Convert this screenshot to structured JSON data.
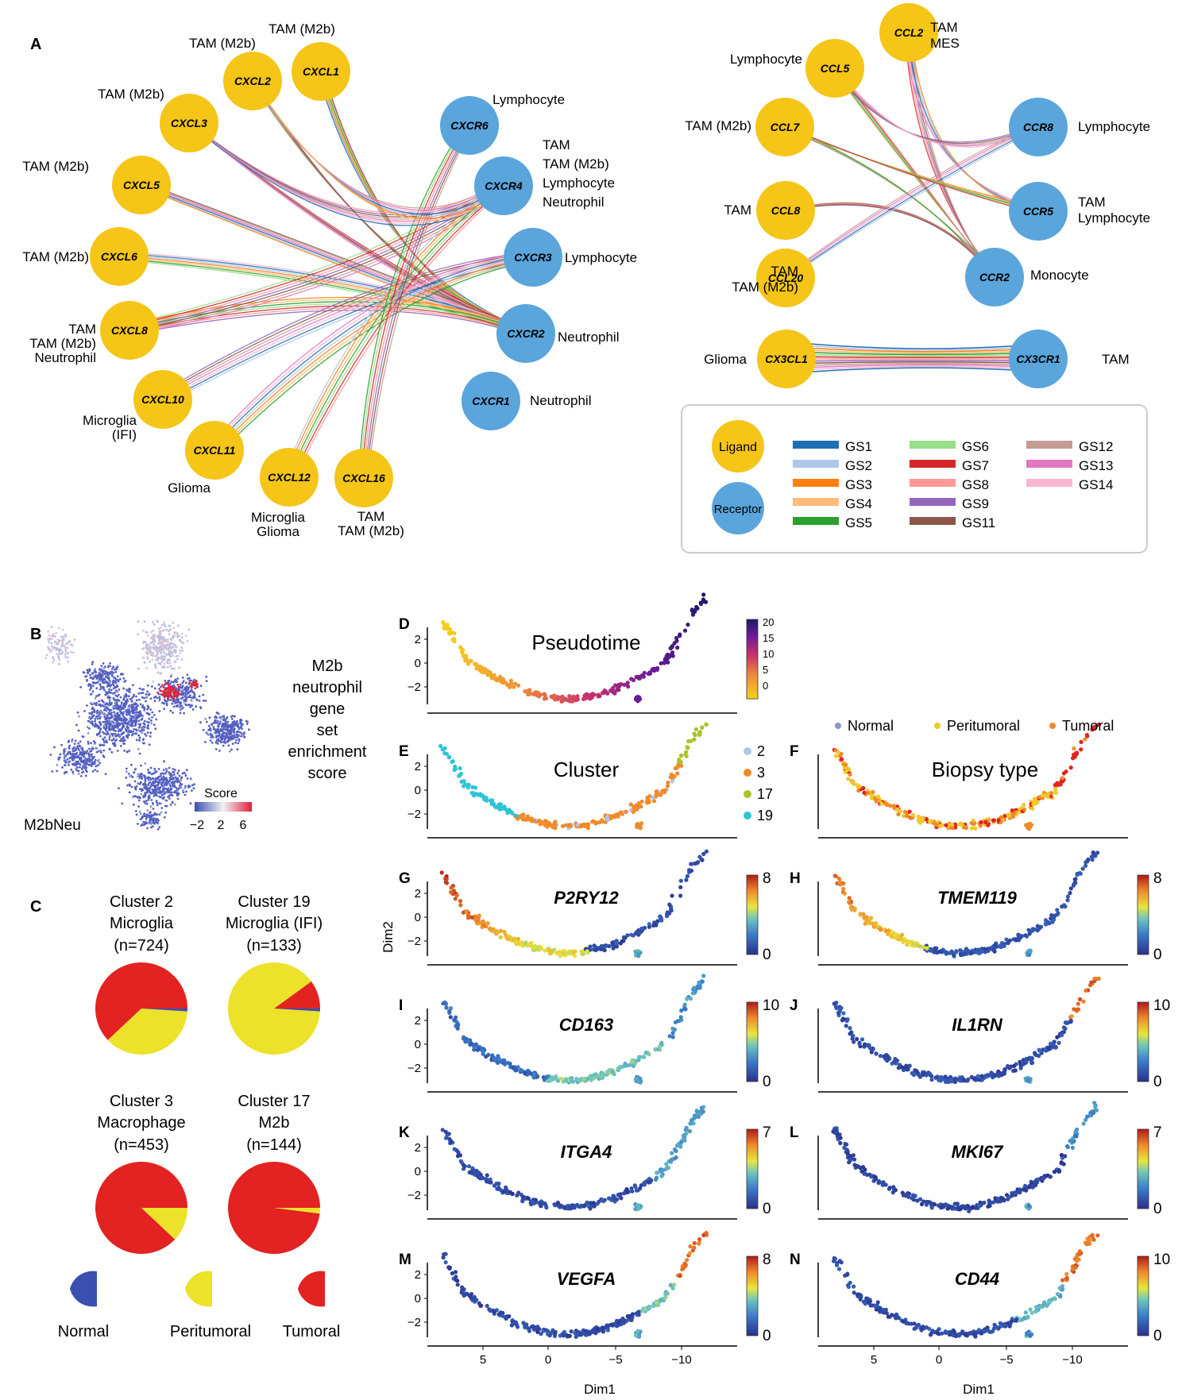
{
  "colors": {
    "ligand": "#f5c518",
    "receptor": "#5aa5dc",
    "normal": "#3a4fb0",
    "peritumoral": "#ece22a",
    "tumoral": "#e32222"
  },
  "panelA": {
    "label": "A",
    "ligands": [
      {
        "gene": "CXCL1",
        "cell": "TAM (M2b)"
      },
      {
        "gene": "CXCL2",
        "cell": "TAM (M2b)"
      },
      {
        "gene": "CXCL3",
        "cell": "TAM (M2b)"
      },
      {
        "gene": "CXCL5",
        "cell": "TAM (M2b)"
      },
      {
        "gene": "CXCL6",
        "cell": "TAM (M2b)"
      },
      {
        "gene": "CXCL8",
        "cell": "TAM\nTAM (M2b)\nNeutrophil"
      },
      {
        "gene": "CXCL10",
        "cell": "Microglia\n(IFI)"
      },
      {
        "gene": "CXCL11",
        "cell": "Glioma"
      },
      {
        "gene": "CXCL12",
        "cell": "Microglia\nGlioma"
      },
      {
        "gene": "CXCL16",
        "cell": "TAM\nTAM (M2b)"
      }
    ],
    "receptors": [
      {
        "gene": "CXCR6",
        "cell": "Lymphocyte"
      },
      {
        "gene": "CXCR4",
        "cell": "TAM\nTAM (M2b)\nLymphocyte\nNeutrophil"
      },
      {
        "gene": "CXCR3",
        "cell": "Lymphocyte"
      },
      {
        "gene": "CXCR2",
        "cell": "Neutrophil"
      },
      {
        "gene": "CXCR1",
        "cell": "Neutrophil"
      }
    ],
    "ccl_ligands": [
      {
        "gene": "CCL2",
        "cell": "TAM\nMES"
      },
      {
        "gene": "CCL5",
        "cell": "Lymphocyte"
      },
      {
        "gene": "CCL7",
        "cell": "TAM (M2b)"
      },
      {
        "gene": "CCL8",
        "cell": "TAM"
      },
      {
        "gene": "CCL20",
        "cell": "TAM\nTAM (M2b)"
      }
    ],
    "ccl_receptors": [
      {
        "gene": "CCR8",
        "cell": "Lymphocyte"
      },
      {
        "gene": "CCR5",
        "cell": "TAM\nLymphocyte"
      },
      {
        "gene": "CCR2",
        "cell": "Monocyte"
      }
    ],
    "cx3": {
      "ligand": {
        "gene": "CX3CL1",
        "cell": "Glioma"
      },
      "receptor": {
        "gene": "CX3CR1",
        "cell": "TAM"
      }
    },
    "legend": {
      "ligand_label": "Ligand",
      "receptor_label": "Receptor",
      "gene_sets": [
        {
          "name": "GS1",
          "color": "#1f6fb4"
        },
        {
          "name": "GS2",
          "color": "#aec7e8"
        },
        {
          "name": "GS3",
          "color": "#ff7f0e"
        },
        {
          "name": "GS4",
          "color": "#ffbb78"
        },
        {
          "name": "GS5",
          "color": "#2ca02c"
        },
        {
          "name": "GS6",
          "color": "#98df8a"
        },
        {
          "name": "GS7",
          "color": "#d62728"
        },
        {
          "name": "GS8",
          "color": "#ff9896"
        },
        {
          "name": "GS9",
          "color": "#9467bd"
        },
        {
          "name": "GS11",
          "color": "#8c564b"
        },
        {
          "name": "GS12",
          "color": "#c49c94"
        },
        {
          "name": "GS13",
          "color": "#e377c2"
        },
        {
          "name": "GS14",
          "color": "#f7b6d2"
        }
      ]
    }
  },
  "panelB": {
    "label": "B",
    "title": "M2b\nneutrophil\ngene\nset\nenrichment\nscore",
    "corner_label": "M2bNeu",
    "score_label": "Score",
    "ticks": [
      "−2",
      "2",
      "6"
    ]
  },
  "panelC": {
    "label": "C",
    "pies": [
      {
        "title": "Cluster 2\nMicroglia",
        "n": "(n=724)",
        "fractions": {
          "normal": 0.01,
          "peritumoral": 0.37,
          "tumoral": 0.62
        }
      },
      {
        "title": "Cluster 19\nMicroglia (IFI)",
        "n": "(n=133)",
        "fractions": {
          "normal": 0.01,
          "peritumoral": 0.89,
          "tumoral": 0.1
        }
      },
      {
        "title": "Cluster 3\nMacrophage",
        "n": "(n=453)",
        "fractions": {
          "normal": 0.0,
          "peritumoral": 0.12,
          "tumoral": 0.88
        }
      },
      {
        "title": "Cluster 17\nM2b",
        "n": "(n=144)",
        "fractions": {
          "normal": 0.0,
          "peritumoral": 0.02,
          "tumoral": 0.98
        }
      }
    ],
    "legend": [
      "Normal",
      "Peritumoral",
      "Tumoral"
    ]
  },
  "trajectory": {
    "ylabel": "Dim2",
    "xlabel": "Dim1",
    "yticks": [
      "2",
      "0",
      "−2"
    ],
    "xticks": [
      "5",
      "0",
      "−5",
      "−10"
    ],
    "panels": [
      {
        "label": "D",
        "title": "Pseudotime",
        "gene": false,
        "cbar": "pseudotime",
        "cbar_ticks": [
          "20",
          "15",
          "10",
          "5",
          "0"
        ]
      },
      {
        "label": "E",
        "title": "Cluster",
        "gene": false,
        "cbar": "cluster",
        "legend": [
          "2",
          "3",
          "17",
          "19"
        ]
      },
      {
        "label": "F",
        "title": "Biopsy type",
        "gene": false,
        "cbar": "biopsy",
        "legend": [
          "Normal",
          "Peritumoral",
          "Tumoral"
        ]
      },
      {
        "label": "G",
        "title": "P2RY12",
        "gene": true,
        "cbar_ticks": [
          "8",
          "0"
        ]
      },
      {
        "label": "H",
        "title": "TMEM119",
        "gene": true,
        "cbar_ticks": [
          "8",
          "0"
        ]
      },
      {
        "label": "I",
        "title": "CD163",
        "gene": true,
        "cbar_ticks": [
          "10",
          "0"
        ]
      },
      {
        "label": "J",
        "title": "IL1RN",
        "gene": true,
        "cbar_ticks": [
          "10",
          "0"
        ]
      },
      {
        "label": "K",
        "title": "ITGA4",
        "gene": true,
        "cbar_ticks": [
          "7",
          "0"
        ]
      },
      {
        "label": "L",
        "title": "MKI67",
        "gene": true,
        "cbar_ticks": [
          "7",
          "0"
        ]
      },
      {
        "label": "M",
        "title": "VEGFA",
        "gene": true,
        "cbar_ticks": [
          "8",
          "0"
        ]
      },
      {
        "label": "N",
        "title": "CD44",
        "gene": true,
        "cbar_ticks": [
          "10",
          "0"
        ]
      }
    ]
  }
}
